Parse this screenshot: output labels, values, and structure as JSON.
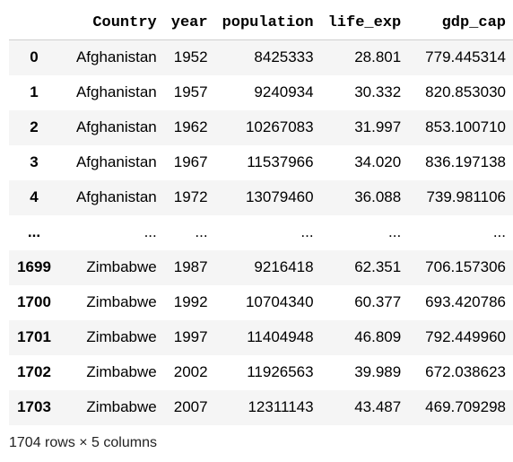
{
  "table": {
    "columns": [
      "",
      "Country",
      "year",
      "population",
      "life_exp",
      "gdp_cap"
    ],
    "rows": [
      [
        "0",
        "Afghanistan",
        "1952",
        "8425333",
        "28.801",
        "779.445314"
      ],
      [
        "1",
        "Afghanistan",
        "1957",
        "9240934",
        "30.332",
        "820.853030"
      ],
      [
        "2",
        "Afghanistan",
        "1962",
        "10267083",
        "31.997",
        "853.100710"
      ],
      [
        "3",
        "Afghanistan",
        "1967",
        "11537966",
        "34.020",
        "836.197138"
      ],
      [
        "4",
        "Afghanistan",
        "1972",
        "13079460",
        "36.088",
        "739.981106"
      ],
      [
        "...",
        "...",
        "...",
        "...",
        "...",
        "..."
      ],
      [
        "1699",
        "Zimbabwe",
        "1987",
        "9216418",
        "62.351",
        "706.157306"
      ],
      [
        "1700",
        "Zimbabwe",
        "1992",
        "10704340",
        "60.377",
        "693.420786"
      ],
      [
        "1701",
        "Zimbabwe",
        "1997",
        "11404948",
        "46.809",
        "792.449960"
      ],
      [
        "1702",
        "Zimbabwe",
        "2002",
        "11926563",
        "39.989",
        "672.038623"
      ],
      [
        "1703",
        "Zimbabwe",
        "2007",
        "12311143",
        "43.487",
        "469.709298"
      ]
    ]
  },
  "footer": "1704 rows × 5 columns"
}
